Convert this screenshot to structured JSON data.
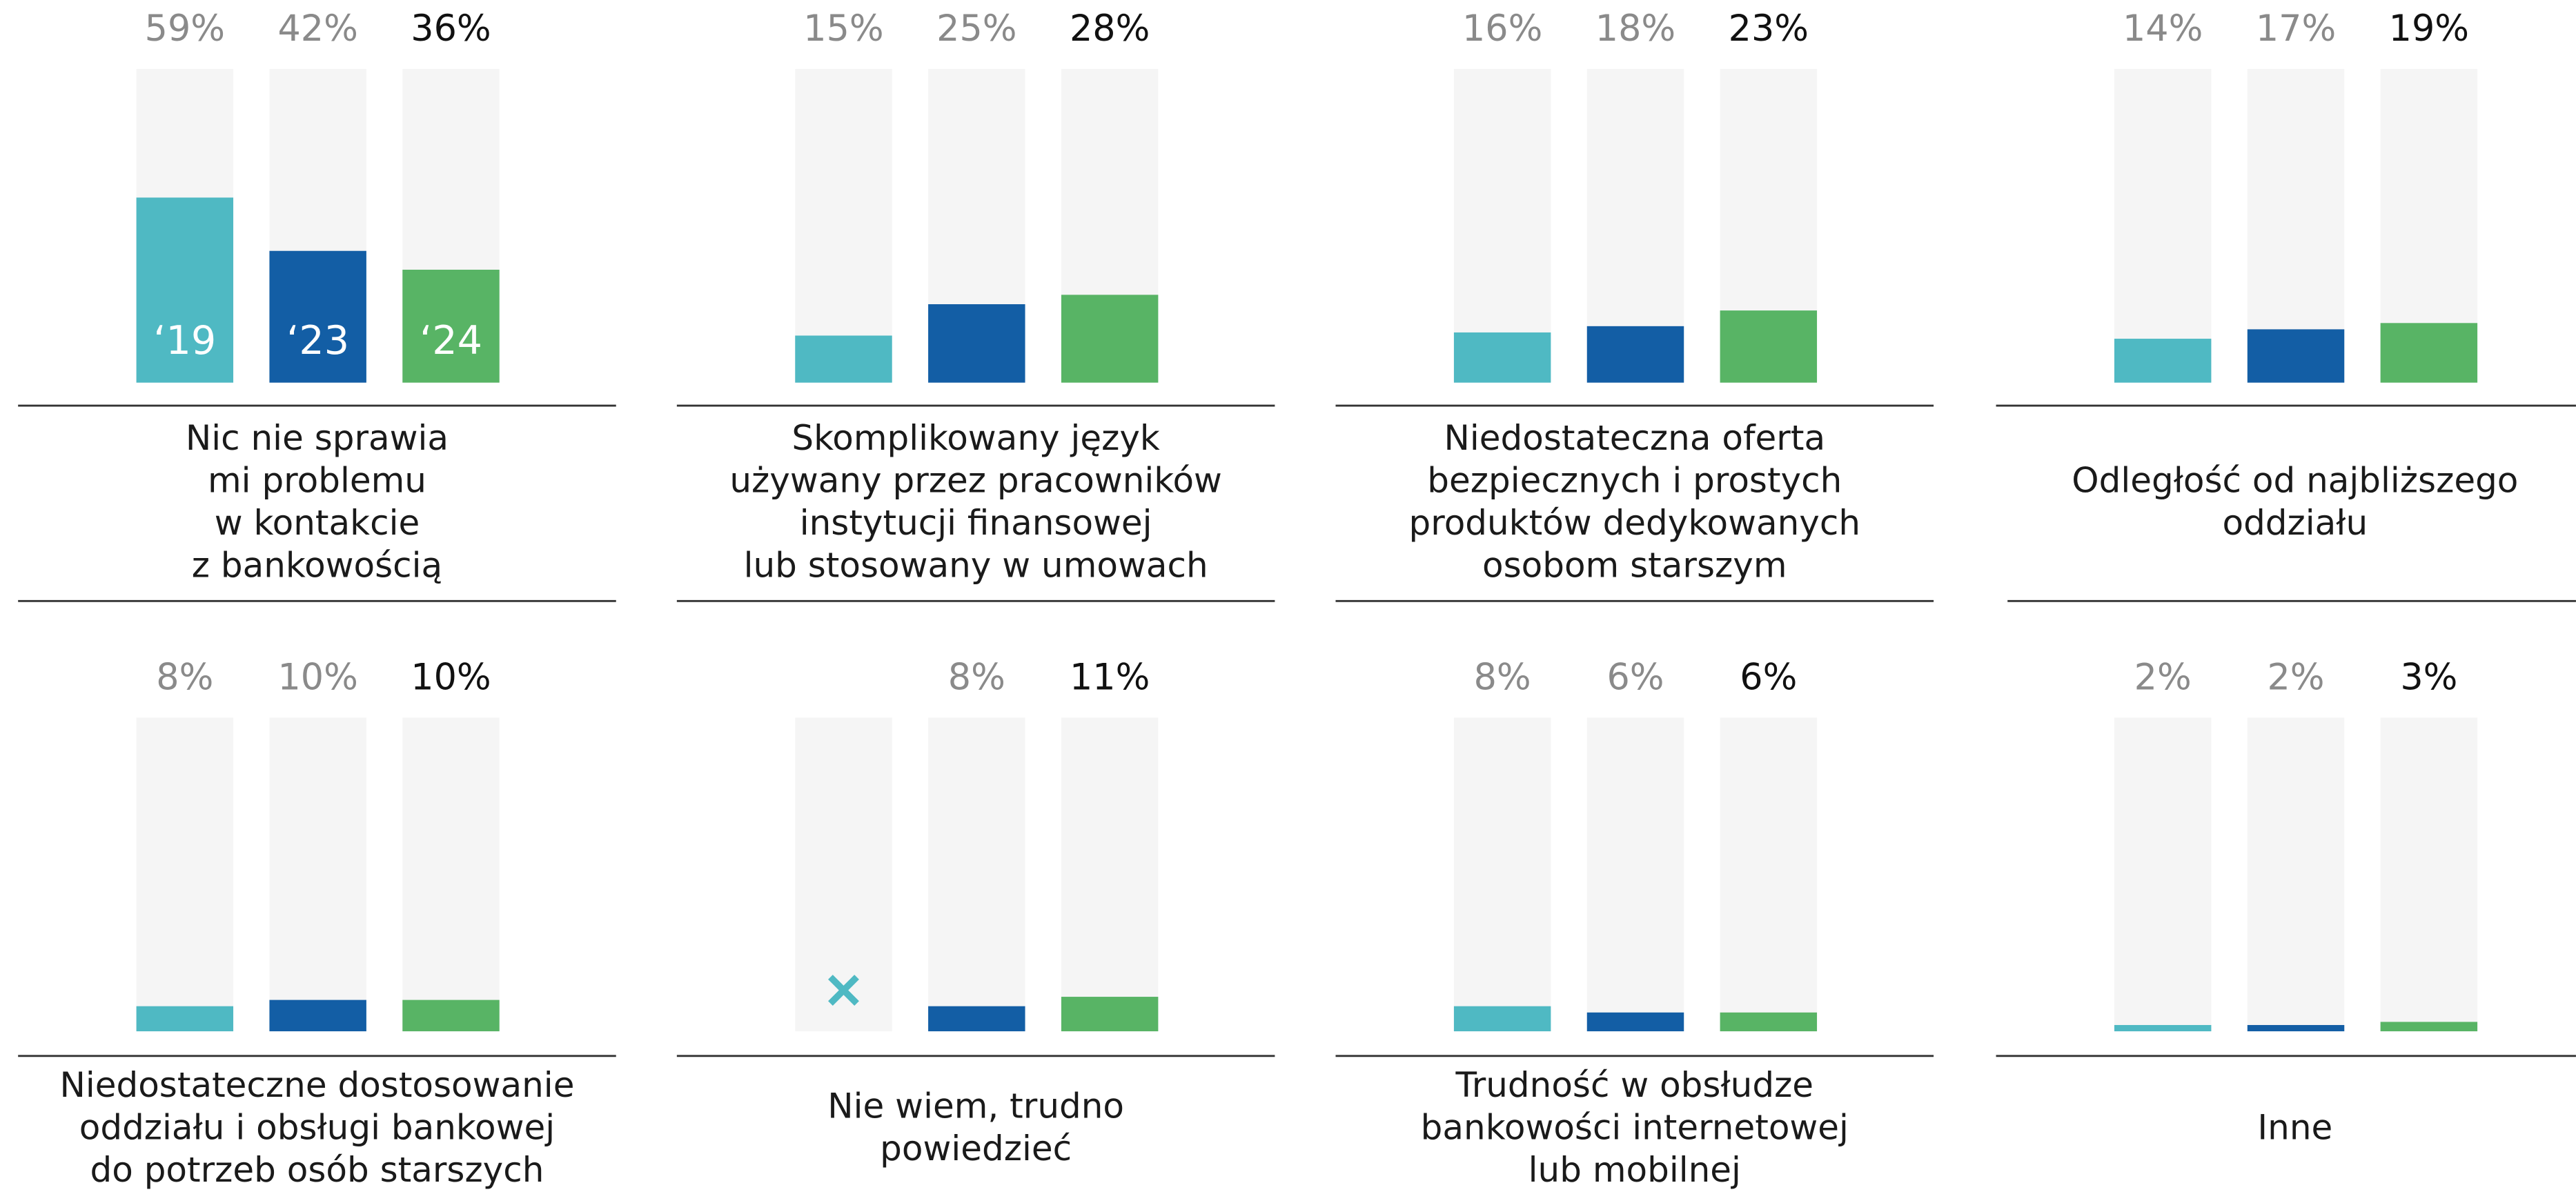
{
  "chart_data": [
    {
      "type": "bar",
      "title": [
        "Nic nie sprawia",
        "mi problemu",
        "w kontakcie",
        "z bankowością"
      ],
      "categories": [
        "‘19",
        "‘23",
        "‘24"
      ],
      "colors": [
        "#4fb9c3",
        "#135ea5",
        "#58b465"
      ],
      "values": [
        59,
        42,
        36
      ],
      "value_labels": [
        "59%",
        "42%",
        "36%"
      ],
      "ylim": [
        0,
        100
      ]
    },
    {
      "type": "bar",
      "title": [
        "Skomplikowany język",
        "używany przez pracowników",
        "instytucji finansowej",
        "lub stosowany w umowach"
      ],
      "categories": [
        null,
        null,
        null
      ],
      "colors": [
        "#4fb9c3",
        "#135ea5",
        "#58b465"
      ],
      "values": [
        15,
        25,
        28
      ],
      "value_labels": [
        "15%",
        "25%",
        "28%"
      ],
      "ylim": [
        0,
        100
      ]
    },
    {
      "type": "bar",
      "title": [
        "Niedostateczna oferta",
        "bezpiecznych i prostych",
        "produktów dedykowanych",
        "osobom starszym"
      ],
      "categories": [
        null,
        null,
        null
      ],
      "colors": [
        "#4fb9c3",
        "#135ea5",
        "#58b465"
      ],
      "values": [
        16,
        18,
        23
      ],
      "value_labels": [
        "16%",
        "18%",
        "23%"
      ],
      "ylim": [
        0,
        100
      ]
    },
    {
      "type": "bar",
      "title": [
        "Odległość od najbliższego",
        "oddziału"
      ],
      "categories": [
        null,
        null,
        null
      ],
      "colors": [
        "#4fb9c3",
        "#135ea5",
        "#58b465"
      ],
      "values": [
        14,
        17,
        19
      ],
      "value_labels": [
        "14%",
        "17%",
        "19%"
      ],
      "ylim": [
        0,
        100
      ]
    },
    {
      "type": "bar",
      "title": [
        "Niedostateczne dostosowanie",
        "oddziału i obsługi bankowej",
        "do potrzeb osób starszych"
      ],
      "categories": [
        null,
        null,
        null
      ],
      "colors": [
        "#4fb9c3",
        "#135ea5",
        "#58b465"
      ],
      "values": [
        8,
        10,
        10
      ],
      "value_labels": [
        "8%",
        "10%",
        "10%"
      ],
      "ylim": [
        0,
        100
      ]
    },
    {
      "type": "bar",
      "title": [
        "Nie wiem, trudno",
        "powiedzieć"
      ],
      "categories": [
        null,
        null,
        null
      ],
      "colors": [
        "#4fb9c3",
        "#135ea5",
        "#58b465"
      ],
      "values": [
        null,
        8,
        11
      ],
      "value_labels": [
        null,
        "8%",
        "11%"
      ],
      "ylim": [
        0,
        100
      ]
    },
    {
      "type": "bar",
      "title": [
        "Trudność w obsłudze",
        "bankowości internetowej",
        "lub mobilnej"
      ],
      "categories": [
        null,
        null,
        null
      ],
      "colors": [
        "#4fb9c3",
        "#135ea5",
        "#58b465"
      ],
      "values": [
        8,
        6,
        6
      ],
      "value_labels": [
        "8%",
        "6%",
        "6%"
      ],
      "ylim": [
        0,
        100
      ]
    },
    {
      "type": "bar",
      "title": [
        "Inne"
      ],
      "categories": [
        null,
        null,
        null
      ],
      "colors": [
        "#4fb9c3",
        "#135ea5",
        "#58b465"
      ],
      "values": [
        2,
        2,
        3
      ],
      "value_labels": [
        "2%",
        "2%",
        "3%"
      ],
      "ylim": [
        0,
        100
      ]
    }
  ]
}
